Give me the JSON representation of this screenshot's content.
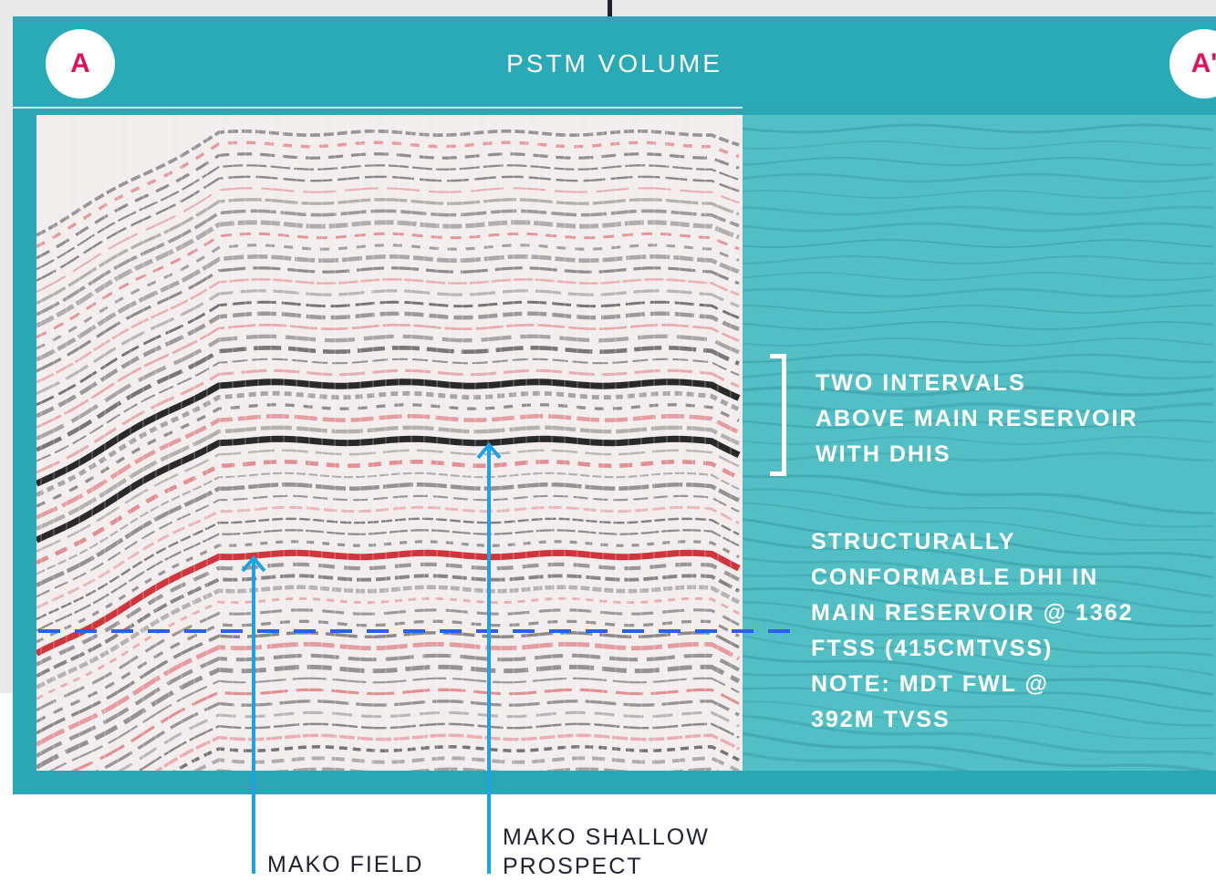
{
  "panel": {
    "title": "PSTM VOLUME",
    "left_marker": "A",
    "right_marker": "A'"
  },
  "annotations": {
    "intervals": [
      "TWO INTERVALS",
      "ABOVE MAIN RESERVOIR",
      "WITH DHIS"
    ],
    "dhi_note": [
      "STRUCTURALLY",
      "CONFORMABLE DHI IN",
      "MAIN RESERVOIR @ 1362",
      "FTSS (415CMTVSS)",
      "NOTE: MDT FWL @",
      "392M TVSS"
    ]
  },
  "callouts": {
    "field": "MAKO FIELD",
    "prospect": [
      "MAKO SHALLOW",
      "PROSPECT"
    ]
  },
  "colors": {
    "frame": "#2aa7b3",
    "teal_panel": "#52c0c6",
    "marker_text": "#e0115f",
    "arrow": "#1aa4e4",
    "contact_line": "#2f5fe0",
    "seismic_red": "#cc2b33",
    "seismic_dark": "#1d1d20"
  }
}
